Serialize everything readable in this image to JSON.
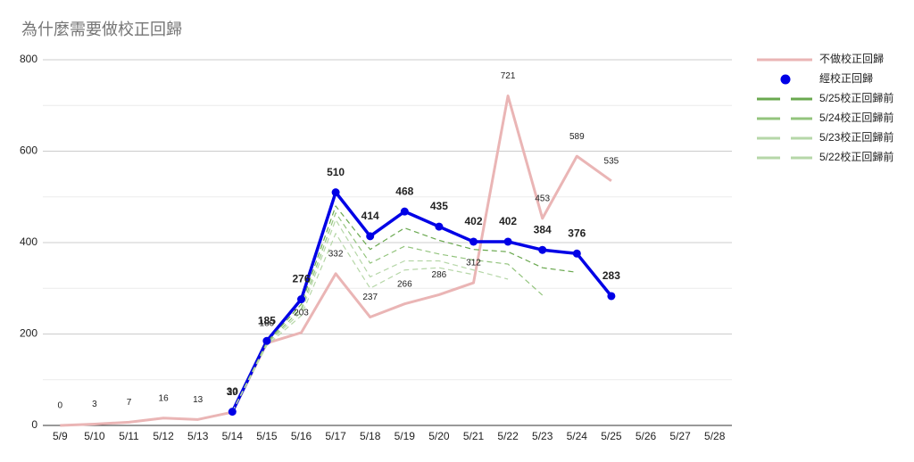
{
  "chart_data": {
    "type": "line",
    "title": "為什麼需要做校正回歸",
    "categories": [
      "5/9",
      "5/10",
      "5/11",
      "5/12",
      "5/13",
      "5/14",
      "5/15",
      "5/16",
      "5/17",
      "5/18",
      "5/19",
      "5/20",
      "5/21",
      "5/22",
      "5/23",
      "5/24",
      "5/25",
      "5/26",
      "5/27",
      "5/28"
    ],
    "ylim": [
      0,
      800
    ],
    "yticks": [
      0,
      200,
      400,
      600,
      800
    ],
    "minor_yticks": [
      100,
      300,
      500,
      700
    ],
    "grid": true,
    "legend": "right",
    "series": [
      {
        "name": "不做校正回歸",
        "color": "#eab5b5",
        "style": "line",
        "show_labels": true,
        "values": [
          0,
          3,
          7,
          16,
          13,
          29,
          180,
          203,
          332,
          237,
          266,
          286,
          312,
          721,
          453,
          589,
          535,
          null,
          null,
          null
        ]
      },
      {
        "name": "經校正回歸",
        "color": "#0000e6",
        "style": "markers",
        "show_labels": true,
        "values": [
          null,
          null,
          null,
          null,
          null,
          30,
          185,
          276,
          510,
          414,
          468,
          435,
          402,
          402,
          384,
          376,
          283,
          null,
          null,
          null
        ]
      },
      {
        "name": "5/25校正回歸前",
        "color": "#6aa84f",
        "style": "dashed",
        "values": [
          null,
          null,
          null,
          null,
          null,
          30,
          182,
          265,
          480,
          385,
          432,
          405,
          385,
          380,
          345,
          335,
          null,
          null,
          null,
          null
        ]
      },
      {
        "name": "5/24校正回歸前",
        "color": "#93c47d",
        "style": "dashed",
        "values": [
          null,
          null,
          null,
          null,
          null,
          30,
          180,
          255,
          465,
          355,
          392,
          375,
          362,
          353,
          285,
          null,
          null,
          null,
          null,
          null
        ]
      },
      {
        "name": "5/23校正回歸前",
        "color": "#b6d7a8",
        "style": "dashed",
        "values": [
          null,
          null,
          null,
          null,
          null,
          30,
          178,
          248,
          450,
          325,
          360,
          360,
          340,
          320,
          null,
          null,
          null,
          null,
          null,
          null
        ]
      },
      {
        "name": "5/22校正回歸前",
        "color": "#b6d7a8",
        "style": "dashed",
        "values": [
          null,
          null,
          null,
          null,
          null,
          30,
          175,
          240,
          420,
          300,
          340,
          345,
          330,
          null,
          null,
          null,
          null,
          null,
          null,
          null
        ]
      }
    ]
  }
}
